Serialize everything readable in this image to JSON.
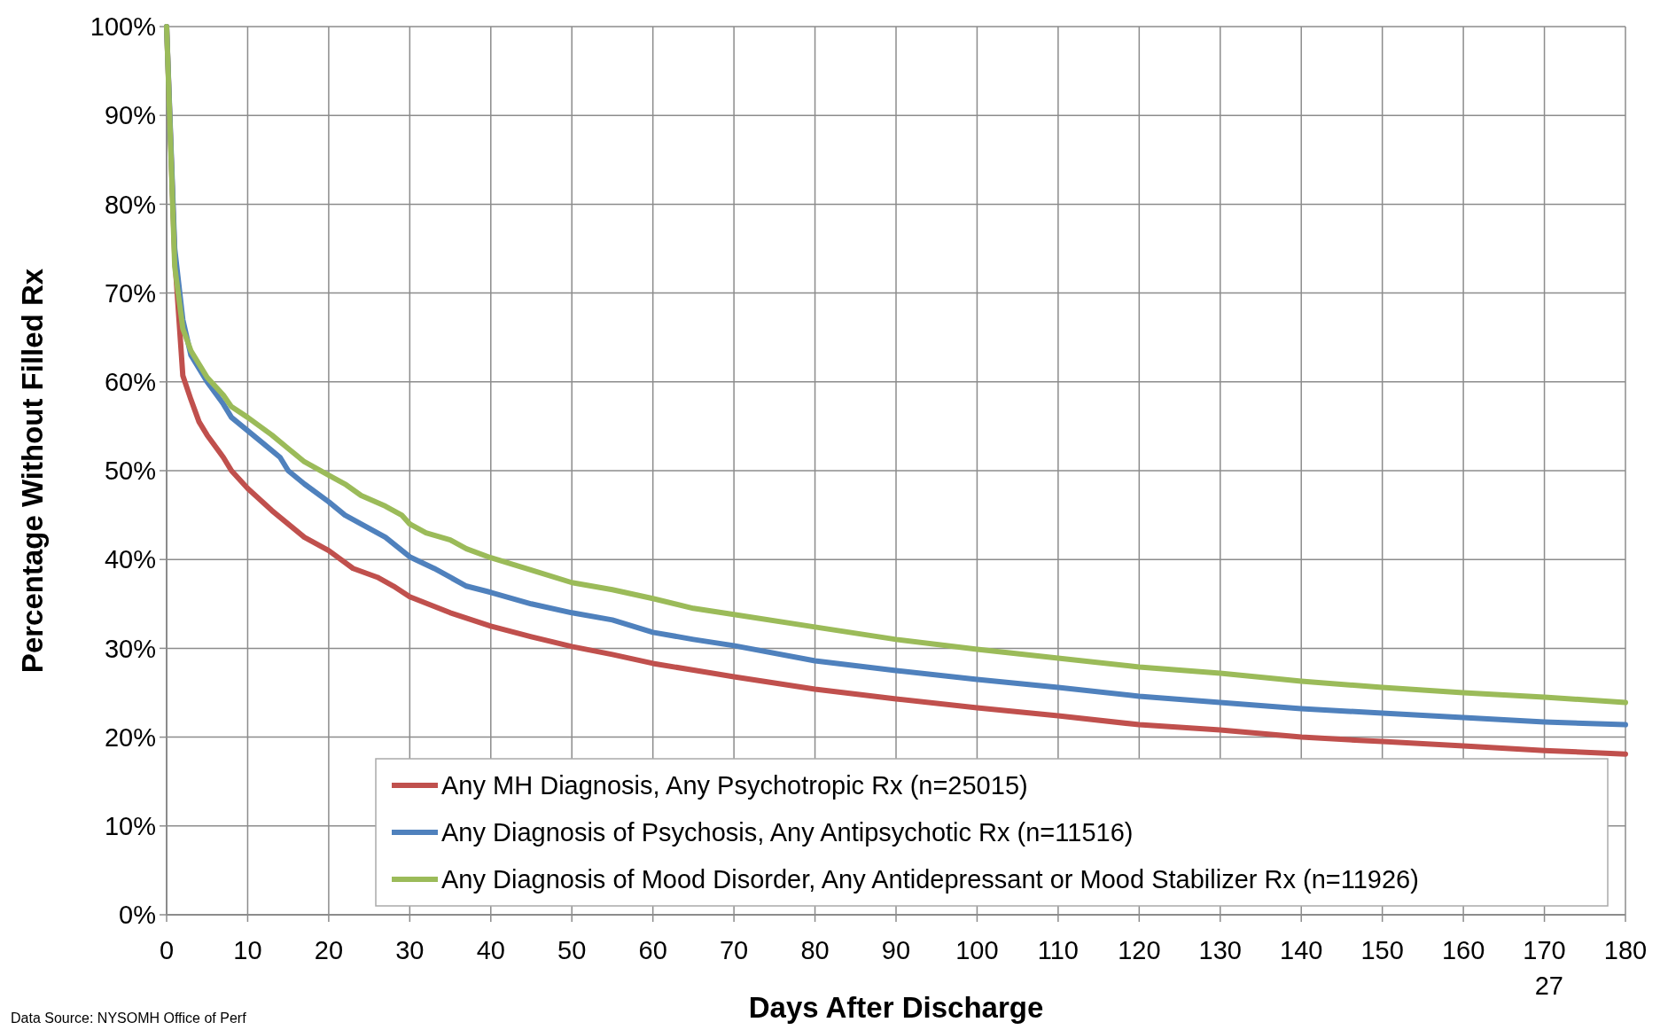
{
  "chart_data": {
    "type": "line",
    "xlabel": "Days After Discharge",
    "ylabel": "Percentage Without Filled Rx",
    "xlim": [
      0,
      180
    ],
    "xticks": [
      0,
      10,
      20,
      30,
      40,
      50,
      60,
      70,
      80,
      90,
      100,
      110,
      120,
      130,
      140,
      150,
      160,
      170,
      180
    ],
    "ylim": [
      0,
      100
    ],
    "yticks": [
      {
        "value": 0,
        "label": "0%"
      },
      {
        "value": 10,
        "label": "10%"
      },
      {
        "value": 20,
        "label": "20%"
      },
      {
        "value": 30,
        "label": "30%"
      },
      {
        "value": 40,
        "label": "40%"
      },
      {
        "value": 50,
        "label": "50%"
      },
      {
        "value": 60,
        "label": "60%"
      },
      {
        "value": 70,
        "label": "70%"
      },
      {
        "value": 80,
        "label": "80%"
      },
      {
        "value": 90,
        "label": "90%"
      },
      {
        "value": 100,
        "label": "100%"
      }
    ],
    "grid": true,
    "legend": "bottom right",
    "marker": "none",
    "line_style": "solid",
    "annotations": [
      "27",
      "Data Source: NYSOMH Office of Perf"
    ],
    "series": [
      {
        "name": "Any MH Diagnosis, Any Psychotropic Rx (n=25015)",
        "color": "#c0504d",
        "x": [
          0,
          1,
          2,
          3,
          4,
          5,
          7,
          8,
          10,
          13,
          15,
          17,
          20,
          23,
          26,
          28,
          30,
          35,
          40,
          45,
          50,
          55,
          60,
          70,
          80,
          90,
          100,
          110,
          120,
          130,
          140,
          150,
          160,
          170,
          180
        ],
        "values": [
          100,
          74,
          60.7,
          58,
          55.5,
          54,
          51.5,
          50,
          48,
          45.5,
          44,
          42.5,
          41,
          39,
          38,
          37,
          35.8,
          34,
          32.5,
          31.3,
          30.2,
          29.3,
          28.3,
          26.8,
          25.4,
          24.3,
          23.3,
          22.4,
          21.4,
          20.8,
          20,
          19.5,
          19,
          18.5,
          18.1
        ]
      },
      {
        "name": "Any Diagnosis of Psychosis, Any Antipsychotic Rx (n=11516)",
        "color": "#4f81bd",
        "x": [
          0,
          1,
          2,
          3,
          5,
          7,
          8,
          10,
          12,
          14,
          15,
          17,
          20,
          22,
          25,
          27,
          30,
          33,
          35,
          37,
          40,
          45,
          50,
          55,
          60,
          65,
          70,
          80,
          90,
          100,
          110,
          120,
          130,
          140,
          150,
          160,
          170,
          180
        ],
        "values": [
          100,
          75,
          67,
          63,
          60,
          57.5,
          56,
          54.5,
          53,
          51.5,
          50,
          48.5,
          46.5,
          45,
          43.5,
          42.5,
          40.3,
          39,
          38,
          37,
          36.3,
          35,
          34,
          33.2,
          31.8,
          31,
          30.3,
          28.6,
          27.5,
          26.5,
          25.6,
          24.6,
          23.9,
          23.2,
          22.7,
          22.2,
          21.7,
          21.4
        ]
      },
      {
        "name": "Any Diagnosis of Mood Disorder, Any Antidepressant or Mood Stabilizer Rx (n=11926)",
        "color": "#9bbb59",
        "x": [
          0,
          1,
          2,
          3,
          5,
          7,
          8,
          10,
          13,
          15,
          17,
          20,
          22,
          24,
          27,
          29,
          30,
          32,
          35,
          37,
          40,
          45,
          50,
          55,
          60,
          65,
          70,
          80,
          90,
          100,
          110,
          120,
          130,
          140,
          150,
          160,
          170,
          180
        ],
        "values": [
          100,
          73,
          66,
          63.5,
          60.5,
          58.5,
          57.2,
          56,
          54,
          52.5,
          51,
          49.5,
          48.5,
          47.2,
          46,
          45,
          44,
          43,
          42.2,
          41.2,
          40.2,
          38.8,
          37.4,
          36.6,
          35.6,
          34.5,
          33.8,
          32.4,
          31,
          29.9,
          28.9,
          27.9,
          27.2,
          26.3,
          25.6,
          25,
          24.5,
          23.9
        ]
      }
    ]
  }
}
